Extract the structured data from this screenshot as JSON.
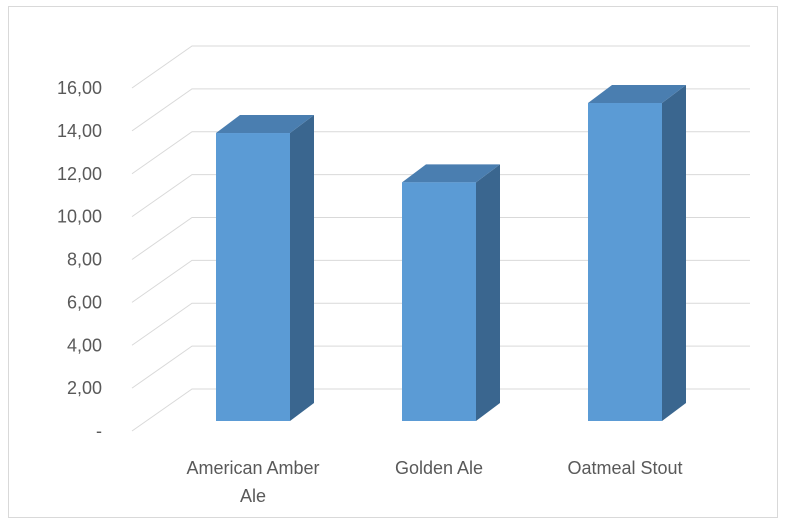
{
  "chart_data": {
    "type": "bar",
    "style": "3d-column",
    "title": "",
    "xlabel": "",
    "ylabel": "",
    "categories": [
      "American Amber Ale",
      "Golden Ale",
      "Oatmeal Stout"
    ],
    "category_lines": [
      [
        "American Amber",
        "Ale"
      ],
      [
        "Golden Ale"
      ],
      [
        "Oatmeal Stout"
      ]
    ],
    "values": [
      13.9,
      11.6,
      15.3
    ],
    "ylim": [
      0,
      16
    ],
    "yticks": [
      0,
      2,
      4,
      6,
      8,
      10,
      12,
      14,
      16
    ],
    "ytick_labels": [
      "-",
      "2,00",
      "4,00",
      "6,00",
      "8,00",
      "10,00",
      "12,00",
      "14,00",
      "16,00"
    ],
    "grid": true,
    "legend": "none",
    "colors": {
      "bar_front": "#5b9bd5",
      "bar_side": "#3a668f",
      "bar_top": "#4a7eb0",
      "grid": "#d9d9d9",
      "text": "#595959"
    }
  }
}
